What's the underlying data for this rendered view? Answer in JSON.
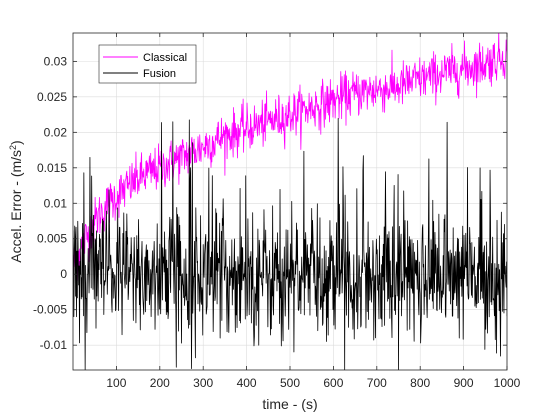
{
  "chart_data": {
    "type": "line",
    "xlabel": "time - (s)",
    "ylabel_main": "Accel. Error - (m/s",
    "ylabel_sup": "2",
    "ylabel_close": ")",
    "xlim": [
      0,
      1000
    ],
    "ylim": [
      -0.0135,
      0.034
    ],
    "xticks": [
      100,
      200,
      300,
      400,
      500,
      600,
      700,
      800,
      900,
      1000
    ],
    "yticks": [
      -0.01,
      -0.005,
      0,
      0.005,
      0.01,
      0.015,
      0.02,
      0.025,
      0.03
    ],
    "ytick_labels": [
      "-0.01",
      "-0.005",
      "0",
      "0.005",
      "0.01",
      "0.015",
      "0.02",
      "0.025",
      "0.03"
    ],
    "grid": true,
    "legend_position": "top-left",
    "series": [
      {
        "name": "Classical",
        "color": "#ff00ff",
        "x": [
          0,
          25,
          50,
          75,
          100,
          150,
          200,
          250,
          300,
          350,
          400,
          450,
          500,
          550,
          600,
          650,
          700,
          750,
          800,
          850,
          900,
          950,
          1000
        ],
        "y": [
          0.001,
          0.0045,
          0.0075,
          0.0095,
          0.011,
          0.0135,
          0.015,
          0.0165,
          0.018,
          0.0195,
          0.0205,
          0.0215,
          0.0225,
          0.0235,
          0.0245,
          0.0255,
          0.026,
          0.0265,
          0.0275,
          0.0283,
          0.029,
          0.0297,
          0.031
        ],
        "noise": 0.0016
      },
      {
        "name": "Fusion",
        "color": "#000000",
        "x": [
          0,
          100,
          200,
          300,
          400,
          500,
          600,
          700,
          800,
          900,
          1000
        ],
        "y": [
          0,
          0,
          0,
          0,
          0,
          0,
          0,
          0,
          0,
          0,
          0
        ],
        "noise": 0.0045,
        "min": -0.0135,
        "max": 0.0225
      }
    ]
  }
}
